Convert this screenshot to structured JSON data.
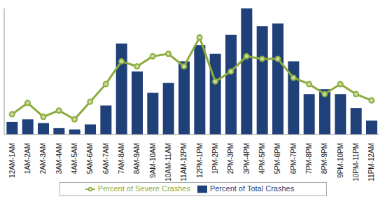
{
  "chart_data": {
    "type": "bar",
    "categories": [
      "12AM-1AM",
      "1AM-2AM",
      "2AM-3AM",
      "3AM-4AM",
      "4AM-5AM",
      "5AM-6AM",
      "6AM-7AM",
      "7AM-8AM",
      "8AM-9AM",
      "9AM-10AM",
      "10AM-11AM",
      "11AM-12PM",
      "12PM-1PM",
      "1PM-2PM",
      "2PM-3PM",
      "3PM-4PM",
      "4PM-5PM",
      "5PM-6PM",
      "6PM-7PM",
      "7PM-8PM",
      "8PM-9PM",
      "9PM-10PM",
      "10PM-11PM",
      "11PM-12AM"
    ],
    "series": [
      {
        "name": "Percent of Total Crashes",
        "type": "bar",
        "color": "#1f4078",
        "values": [
          1.0,
          1.2,
          0.9,
          0.5,
          0.4,
          0.8,
          2.3,
          7.2,
          5.0,
          3.3,
          4.1,
          5.8,
          7.1,
          6.4,
          7.9,
          10.0,
          8.6,
          8.8,
          5.8,
          3.2,
          3.6,
          3.2,
          2.1,
          1.1
        ]
      },
      {
        "name": "Percent of Severe Crashes",
        "type": "line",
        "color": "#8bab3f",
        "marker": "circle",
        "values": [
          1.6,
          2.5,
          1.4,
          1.9,
          1.2,
          2.6,
          4.0,
          5.8,
          5.4,
          6.2,
          6.4,
          5.4,
          7.7,
          4.2,
          5.0,
          6.2,
          6.0,
          6.0,
          4.5,
          4.0,
          3.2,
          4.0,
          3.2,
          2.7
        ]
      }
    ],
    "ylim": [
      0,
      10
    ],
    "yticks": [],
    "tick_labels": "x",
    "grid": false,
    "legend": "bottom"
  }
}
